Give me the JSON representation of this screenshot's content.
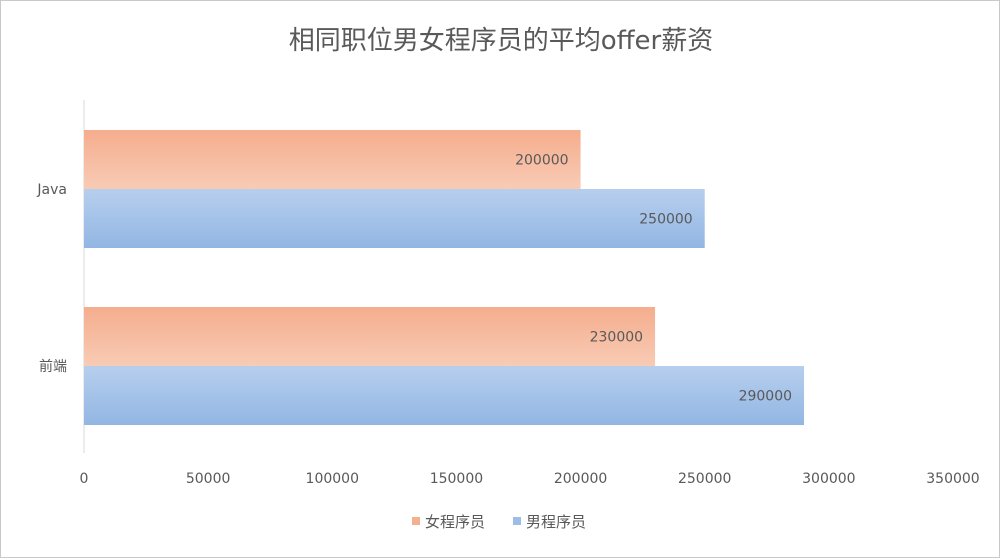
{
  "chart_data": {
    "type": "bar",
    "orientation": "horizontal",
    "title": "相同职位男女程序员的平均offer薪资",
    "categories": [
      "Java",
      "前端"
    ],
    "series": [
      {
        "name": "女程序员",
        "values": [
          200000,
          230000
        ],
        "color": "#f4b08f"
      },
      {
        "name": "男程序员",
        "values": [
          250000,
          290000
        ],
        "color": "#9dbde6"
      }
    ],
    "xlim": [
      0,
      350000
    ],
    "xticks": [
      0,
      50000,
      100000,
      150000,
      200000,
      250000,
      300000,
      350000
    ],
    "data_labels": true,
    "grid": false,
    "legend_position": "bottom"
  }
}
